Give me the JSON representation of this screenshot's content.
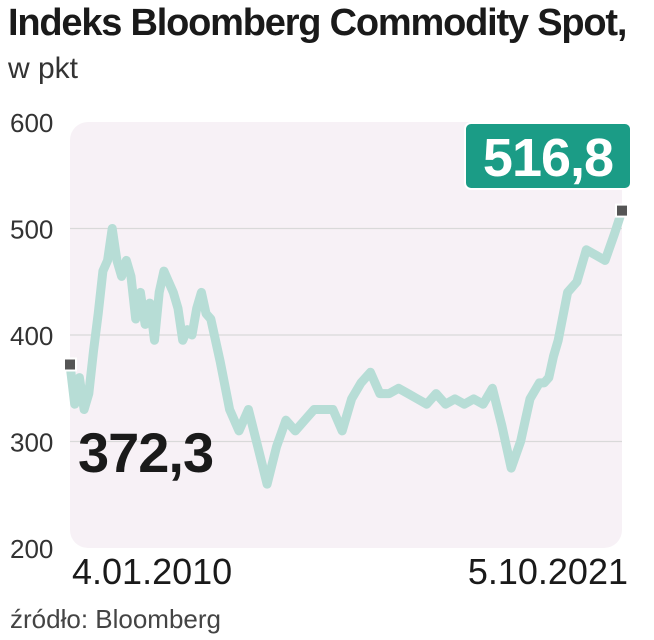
{
  "header": {
    "title": "Indeks Bloomberg Commodity Spot,",
    "subtitle": "w pkt"
  },
  "chart_data": {
    "type": "line",
    "title": "Indeks Bloomberg Commodity Spot,",
    "subtitle": "w pkt",
    "xlabel": "",
    "ylabel": "",
    "ylim": [
      200,
      600
    ],
    "yticks": [
      200,
      300,
      400,
      500,
      600
    ],
    "xlim": [
      2010.0,
      2021.76
    ],
    "x_tick_labels": [
      "4.01.2010",
      "5.10.2021"
    ],
    "grid": "horizontal",
    "line_color": "#b7ddd6",
    "panel_color": "#f7f1f6",
    "highlight_color": "#1b9c86",
    "start_point": {
      "date": "4.01.2010",
      "value": 372.3,
      "label": "372,3"
    },
    "end_point": {
      "date": "5.10.2021",
      "value": 516.8,
      "label": "516,8"
    },
    "series": [
      {
        "x": [
          2010.0,
          2010.1,
          2010.2,
          2010.3,
          2010.4,
          2010.5,
          2010.6,
          2010.7,
          2010.8,
          2010.9,
          2011.0,
          2011.1,
          2011.2,
          2011.3,
          2011.4,
          2011.5,
          2011.6,
          2011.7,
          2011.8,
          2011.9,
          2012.0,
          2012.1,
          2012.2,
          2012.3,
          2012.4,
          2012.5,
          2012.6,
          2012.7,
          2012.8,
          2012.9,
          2013.0,
          2013.2,
          2013.4,
          2013.6,
          2013.8,
          2014.0,
          2014.2,
          2014.4,
          2014.6,
          2014.8,
          2015.0,
          2015.2,
          2015.4,
          2015.6,
          2015.8,
          2016.0,
          2016.2,
          2016.4,
          2016.6,
          2016.8,
          2017.0,
          2017.2,
          2017.4,
          2017.6,
          2017.8,
          2018.0,
          2018.2,
          2018.4,
          2018.6,
          2018.8,
          2019.0,
          2019.2,
          2019.4,
          2019.6,
          2019.8,
          2020.0,
          2020.1,
          2020.2,
          2020.3,
          2020.4,
          2020.6,
          2020.8,
          2021.0,
          2021.2,
          2021.4,
          2021.6,
          2021.76
        ],
        "values": [
          372.3,
          335,
          360,
          330,
          345,
          385,
          420,
          460,
          470,
          500,
          470,
          455,
          470,
          455,
          415,
          440,
          410,
          430,
          395,
          440,
          460,
          450,
          440,
          425,
          395,
          405,
          400,
          425,
          440,
          420,
          415,
          375,
          330,
          310,
          330,
          295,
          260,
          295,
          320,
          310,
          320,
          330,
          330,
          330,
          310,
          340,
          355,
          365,
          345,
          345,
          350,
          345,
          340,
          335,
          345,
          335,
          340,
          335,
          340,
          335,
          350,
          315,
          275,
          300,
          340,
          355,
          355,
          360,
          380,
          395,
          440,
          450,
          480,
          475,
          470,
          495,
          516.8
        ]
      }
    ]
  },
  "footer": {
    "source": "źródło: Bloomberg"
  }
}
